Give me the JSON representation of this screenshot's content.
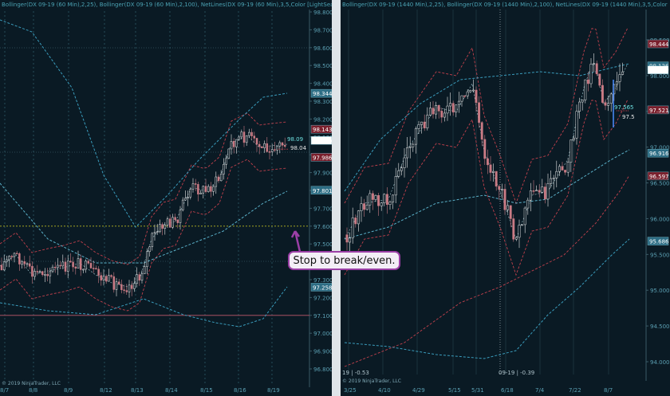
{
  "left_chart": {
    "header": "Bollinger(DX 09-19 (60 Min),2,25), Bollinger(DX 09-19 (60 Min),2,100), NetLines(DX 09-19 (60 Min),3,5,Color [LightSeaGre",
    "copyright": "© 2019 NinjaTrader, LLC",
    "y_ticks": [
      "98.800",
      "98.700",
      "98.600",
      "98.500",
      "98.400",
      "98.300",
      "98.200",
      "98.100",
      "98.000",
      "97.900",
      "97.800",
      "97.700",
      "97.600",
      "97.500",
      "97.400",
      "97.300",
      "97.200",
      "97.100",
      "97.000",
      "96.900",
      "96.800"
    ],
    "x_ticks": [
      "8/7",
      "8/8",
      "8/9",
      "8/12",
      "8/13",
      "8/14",
      "8/15",
      "8/16",
      "8/19"
    ],
    "price_labels": [
      {
        "text": "98.344",
        "value": 98.344,
        "color": "#2d6d84"
      },
      {
        "text": "98.143",
        "value": 98.143,
        "color": "#7a1f2c"
      },
      {
        "text": "98.080",
        "value": 98.08,
        "color": "#ffffff"
      },
      {
        "text": "97.986",
        "value": 97.986,
        "color": "#7a1f2c"
      },
      {
        "text": "97.801",
        "value": 97.801,
        "color": "#2d6d84"
      },
      {
        "text": "97.258",
        "value": 97.258,
        "color": "#2d6d84"
      }
    ],
    "annotations": [
      {
        "text": "98.09",
        "value": 98.09,
        "color": "#6ee0e0"
      },
      {
        "text": "98.04",
        "value": 98.04,
        "color": "#e8e8e8"
      }
    ],
    "horizontal_lines": [
      {
        "value": 97.6,
        "color": "#b8b820",
        "style": "dotted"
      },
      {
        "value": 97.1,
        "color": "#c05a6a",
        "style": "solid"
      }
    ]
  },
  "right_chart": {
    "header": "Bollinger(DX 09-19 (1440 Min),2,25), Bollinger(DX 09-19 (1440 Min),2,100), NetLines(DX 09-19 (1440 Min),3,5,Color",
    "copyright": "© 2019 NinjaTrader, LLC",
    "y_ticks": [
      "98.500",
      "98.000",
      "97.500",
      "97.000",
      "96.500",
      "96.000",
      "95.500",
      "95.000",
      "94.500",
      "94.000"
    ],
    "x_ticks": [
      "3/25",
      "4/10",
      "4/29",
      "5/15",
      "5/31",
      "6/18",
      "7/4",
      "7/22",
      "8/7"
    ],
    "price_labels": [
      {
        "text": "98.444",
        "value": 98.444,
        "color": "#7a1f2c"
      },
      {
        "text": "98.136",
        "value": 98.136,
        "color": "#2d6d84"
      },
      {
        "text": "98.080",
        "value": 98.08,
        "color": "#ffffff"
      },
      {
        "text": "97.521",
        "value": 97.521,
        "color": "#7a1f2c"
      },
      {
        "text": "96.916",
        "value": 96.916,
        "color": "#2d6d84"
      },
      {
        "text": "96.597",
        "value": 96.597,
        "color": "#7a1f2c"
      },
      {
        "text": "95.686",
        "value": 95.686,
        "color": "#2d6d84"
      }
    ],
    "annotations": [
      {
        "text": "97.565",
        "value": 97.565,
        "color": "#6ee0e0"
      },
      {
        "text": "97.5",
        "value": 97.5,
        "color": "#e8e8e8"
      }
    ],
    "bottom_labels": [
      {
        "text": "19 | -0.53"
      },
      {
        "text": "09-19 | -0.39"
      }
    ]
  },
  "callout": {
    "text": "Stop to break/even."
  },
  "colors": {
    "background": "#0a1a24",
    "candle_up": "#e8e8e8",
    "candle_down": "#c97b84",
    "band_red": "#c0404c",
    "band_cyan": "#3a9cbc",
    "grid": "#3b6f7e",
    "axis_text": "#5b9fb2",
    "callout_border": "#9b3fa6"
  }
}
